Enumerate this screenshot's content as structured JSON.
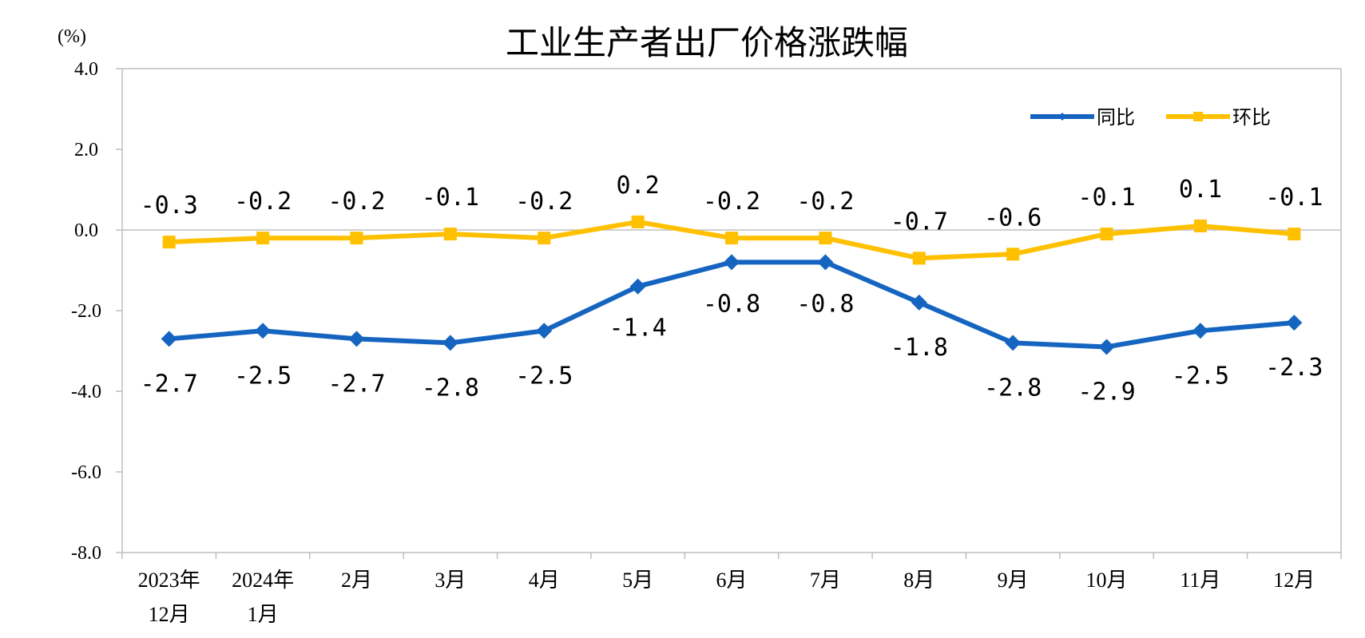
{
  "chart_data": {
    "type": "line",
    "title": "工业生产者出厂价格涨跌幅",
    "unit_label": "(%)",
    "categories": [
      [
        "2023年",
        "12月"
      ],
      [
        "2024年",
        "1月"
      ],
      [
        "2月"
      ],
      [
        "3月"
      ],
      [
        "4月"
      ],
      [
        "5月"
      ],
      [
        "6月"
      ],
      [
        "7月"
      ],
      [
        "8月"
      ],
      [
        "9月"
      ],
      [
        "10月"
      ],
      [
        "11月"
      ],
      [
        "12月"
      ]
    ],
    "ylim": [
      -8.0,
      4.0
    ],
    "yticks": [
      4.0,
      2.0,
      0.0,
      -2.0,
      -4.0,
      -6.0,
      -8.0
    ],
    "ytick_labels": [
      "4.0",
      "2.0",
      "0.0",
      "-2.0",
      "-4.0",
      "-6.0",
      "-8.0"
    ],
    "legend_position": "top-right",
    "series": [
      {
        "name": "同比",
        "color": "#1565C0",
        "marker": "diamond",
        "values": [
          -2.7,
          -2.5,
          -2.7,
          -2.8,
          -2.5,
          -1.4,
          -0.8,
          -0.8,
          -1.8,
          -2.8,
          -2.9,
          -2.5,
          -2.3
        ],
        "labels": [
          "-2.7",
          "-2.5",
          "-2.7",
          "-2.8",
          "-2.5",
          "-1.4",
          "-0.8",
          "-0.8",
          "-1.8",
          "-2.8",
          "-2.9",
          "-2.5",
          "-2.3"
        ]
      },
      {
        "name": "环比",
        "color": "#FFC000",
        "marker": "square",
        "values": [
          -0.3,
          -0.2,
          -0.2,
          -0.1,
          -0.2,
          0.2,
          -0.2,
          -0.2,
          -0.7,
          -0.6,
          -0.1,
          0.1,
          -0.1
        ],
        "labels": [
          "-0.3",
          "-0.2",
          "-0.2",
          "-0.1",
          "-0.2",
          "0.2",
          "-0.2",
          "-0.2",
          "-0.7",
          "-0.6",
          "-0.1",
          "0.1",
          "-0.1"
        ]
      }
    ]
  }
}
